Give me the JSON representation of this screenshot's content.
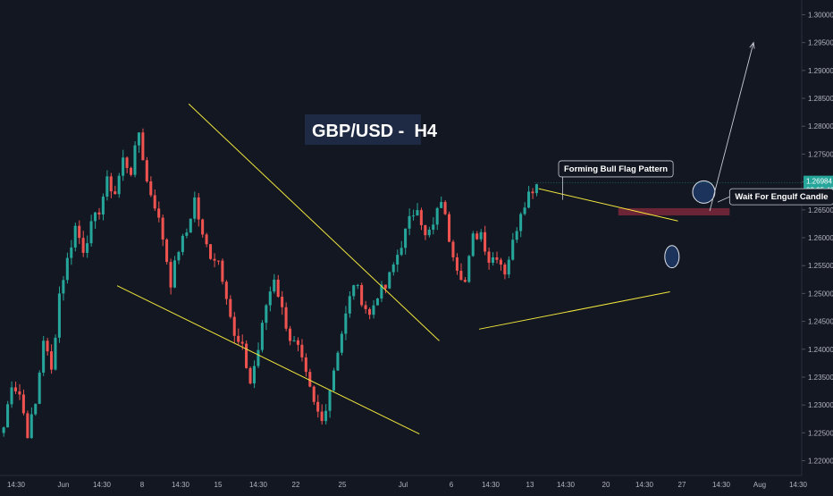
{
  "chart_data": {
    "type": "candlestick",
    "title": "GBP/USD -  H4",
    "colors": {
      "background": "#131722",
      "bullish": "#26a69a",
      "bearish": "#ef5350",
      "trendline": "#f0e63c",
      "axis_text": "#b2b5be",
      "zone": "#8a2b3f",
      "ellipse_fill": "#1e3a66"
    },
    "grid": false,
    "y_axis": {
      "position": "right",
      "range": [
        1.218,
        1.302
      ],
      "ticks": [
        "1.30000",
        "1.29500",
        "1.29000",
        "1.28500",
        "1.28000",
        "1.27500",
        "1.27000",
        "1.26500",
        "1.26000",
        "1.25500",
        "1.25000",
        "1.24500",
        "1.24000",
        "1.23500",
        "1.23000",
        "1.22500",
        "1.22000"
      ]
    },
    "x_axis": {
      "ticks": [
        "14:30",
        "Jun",
        "14:30",
        "8",
        "14:30",
        "15",
        "14:30",
        "22",
        "25",
        "Jul",
        "6",
        "14:30",
        "13",
        "14:30",
        "20",
        "14:30",
        "27",
        "14:30",
        "Aug",
        "14:30"
      ]
    },
    "current_price": {
      "value": "1.26984",
      "countdown": "02:25:43"
    },
    "price_path": [
      [
        0,
        1.226
      ],
      [
        2,
        1.234
      ],
      [
        4,
        1.232
      ],
      [
        6,
        1.225
      ],
      [
        8,
        1.23
      ],
      [
        10,
        1.242
      ],
      [
        12,
        1.236
      ],
      [
        14,
        1.25
      ],
      [
        16,
        1.256
      ],
      [
        18,
        1.262
      ],
      [
        20,
        1.258
      ],
      [
        22,
        1.262
      ],
      [
        24,
        1.265
      ],
      [
        26,
        1.27
      ],
      [
        28,
        1.268
      ],
      [
        30,
        1.274
      ],
      [
        32,
        1.272
      ],
      [
        34,
        1.279
      ],
      [
        36,
        1.27
      ],
      [
        38,
        1.266
      ],
      [
        40,
        1.26
      ],
      [
        42,
        1.252
      ],
      [
        44,
        1.258
      ],
      [
        46,
        1.261
      ],
      [
        48,
        1.267
      ],
      [
        50,
        1.26
      ],
      [
        52,
        1.257
      ],
      [
        54,
        1.256
      ],
      [
        56,
        1.25
      ],
      [
        58,
        1.242
      ],
      [
        60,
        1.24
      ],
      [
        62,
        1.234
      ],
      [
        64,
        1.24
      ],
      [
        66,
        1.248
      ],
      [
        68,
        1.253
      ],
      [
        70,
        1.247
      ],
      [
        72,
        1.242
      ],
      [
        74,
        1.24
      ],
      [
        76,
        1.235
      ],
      [
        78,
        1.23
      ],
      [
        80,
        1.227
      ],
      [
        82,
        1.233
      ],
      [
        84,
        1.24
      ],
      [
        86,
        1.246
      ],
      [
        88,
        1.252
      ],
      [
        90,
        1.249
      ],
      [
        92,
        1.246
      ],
      [
        94,
        1.25
      ],
      [
        96,
        1.251
      ],
      [
        98,
        1.255
      ],
      [
        100,
        1.259
      ],
      [
        102,
        1.263
      ],
      [
        104,
        1.266
      ],
      [
        106,
        1.26
      ],
      [
        108,
        1.262
      ],
      [
        110,
        1.267
      ],
      [
        112,
        1.26
      ],
      [
        114,
        1.255
      ],
      [
        116,
        1.252
      ],
      [
        118,
        1.26
      ],
      [
        120,
        1.261
      ],
      [
        122,
        1.256
      ],
      [
        124,
        1.257
      ],
      [
        126,
        1.254
      ],
      [
        128,
        1.259
      ],
      [
        130,
        1.265
      ],
      [
        132,
        1.268
      ],
      [
        134,
        1.2698
      ]
    ],
    "trendlines": [
      {
        "from": [
          47,
          1.284
        ],
        "to": [
          110,
          1.2415
        ]
      },
      {
        "from": [
          29,
          1.2514
        ],
        "to": [
          105,
          1.2248
        ]
      },
      {
        "from": [
          120,
          1.2436
        ],
        "to": [
          168,
          1.2503
        ]
      },
      {
        "from": [
          135,
          1.2688
        ],
        "to": [
          170,
          1.263
        ]
      }
    ],
    "annotations": [
      {
        "text": "Forming Bull Flag Pattern",
        "at": [
          140,
          1.2738
        ],
        "pointer_to": [
          141,
          1.2668
        ]
      },
      {
        "text": "Wait For Engulf Candle",
        "at": [
          183,
          1.2688
        ],
        "pointer_to": [
          180,
          1.2664
        ]
      }
    ],
    "resistance_zone": {
      "x_range": [
        155,
        183
      ],
      "y_range": [
        1.264,
        1.2653
      ]
    },
    "ellipses": [
      {
        "center": [
          176.5,
          1.2682
        ],
        "radius": [
          2.8,
          0.002
        ]
      },
      {
        "center": [
          168.5,
          1.2566
        ],
        "radius": [
          1.8,
          0.002
        ]
      }
    ],
    "projection_arrow": {
      "from": [
        178,
        1.2648
      ],
      "to": [
        189,
        1.295
      ]
    }
  }
}
